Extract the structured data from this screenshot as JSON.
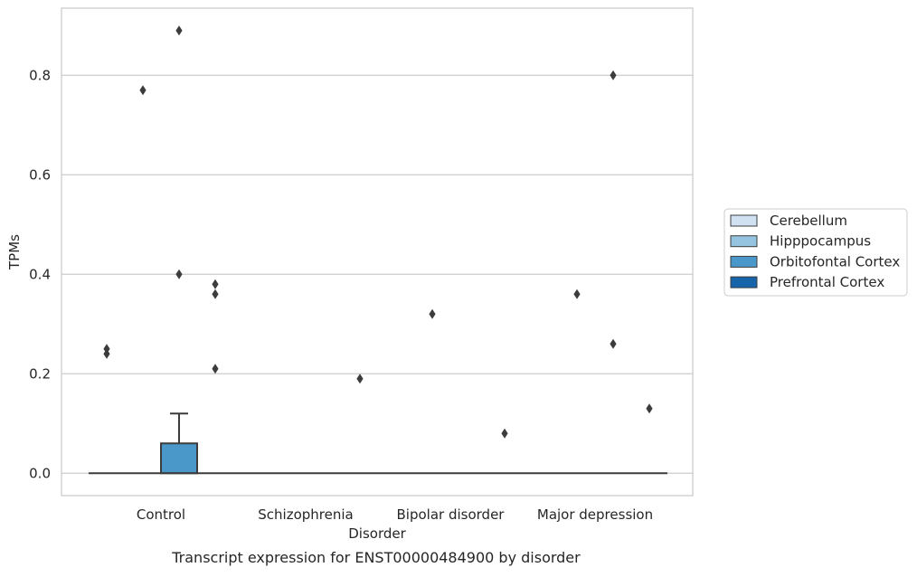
{
  "chart_data": {
    "type": "box",
    "caption": "Transcript expression for ENST00000484900 by disorder",
    "xlabel": "Disorder",
    "ylabel": "TPMs",
    "ylim": [
      -0.045,
      0.935
    ],
    "yticks": [
      0.0,
      0.2,
      0.4,
      0.6,
      0.8
    ],
    "ytick_labels": [
      "0.0",
      "0.2",
      "0.4",
      "0.6",
      "0.8"
    ],
    "grid": "horizontal",
    "legend_position": "right",
    "categories": [
      "Control",
      "Schizophrenia",
      "Bipolar disorder",
      "Major depression"
    ],
    "series": [
      {
        "name": "Cerebellum",
        "color": "#d0e1f2",
        "boxes": [
          {
            "q1": 0,
            "median": 0,
            "q3": 0,
            "whisker_low": 0,
            "whisker_high": 0,
            "outliers": [
              0.25,
              0.24
            ]
          },
          {
            "q1": 0,
            "median": 0,
            "q3": 0,
            "whisker_low": 0,
            "whisker_high": 0,
            "outliers": []
          },
          {
            "q1": 0,
            "median": 0,
            "q3": 0,
            "whisker_low": 0,
            "whisker_high": 0,
            "outliers": []
          },
          {
            "q1": 0,
            "median": 0,
            "q3": 0,
            "whisker_low": 0,
            "whisker_high": 0,
            "outliers": []
          }
        ]
      },
      {
        "name": "Hipppocampus",
        "color": "#94c4df",
        "boxes": [
          {
            "q1": 0,
            "median": 0,
            "q3": 0,
            "whisker_low": 0,
            "whisker_high": 0,
            "outliers": [
              0.77
            ]
          },
          {
            "q1": 0,
            "median": 0,
            "q3": 0,
            "whisker_low": 0,
            "whisker_high": 0,
            "outliers": []
          },
          {
            "q1": 0,
            "median": 0,
            "q3": 0,
            "whisker_low": 0,
            "whisker_high": 0,
            "outliers": [
              0.32
            ]
          },
          {
            "q1": 0,
            "median": 0,
            "q3": 0,
            "whisker_low": 0,
            "whisker_high": 0,
            "outliers": [
              0.36
            ]
          }
        ]
      },
      {
        "name": "Orbitofontal Cortex",
        "color": "#4a98c9",
        "boxes": [
          {
            "q1": 0,
            "median": 0,
            "q3": 0.06,
            "whisker_low": 0,
            "whisker_high": 0.12,
            "outliers": [
              0.89,
              0.4
            ]
          },
          {
            "q1": 0,
            "median": 0,
            "q3": 0,
            "whisker_low": 0,
            "whisker_high": 0,
            "outliers": []
          },
          {
            "q1": 0,
            "median": 0,
            "q3": 0,
            "whisker_low": 0,
            "whisker_high": 0,
            "outliers": []
          },
          {
            "q1": 0,
            "median": 0,
            "q3": 0,
            "whisker_low": 0,
            "whisker_high": 0,
            "outliers": [
              0.8,
              0.26
            ]
          }
        ]
      },
      {
        "name": "Prefrontal Cortex",
        "color": "#1764ab",
        "boxes": [
          {
            "q1": 0,
            "median": 0,
            "q3": 0,
            "whisker_low": 0,
            "whisker_high": 0,
            "outliers": [
              0.38,
              0.36,
              0.21
            ]
          },
          {
            "q1": 0,
            "median": 0,
            "q3": 0,
            "whisker_low": 0,
            "whisker_high": 0,
            "outliers": [
              0.19
            ]
          },
          {
            "q1": 0,
            "median": 0,
            "q3": 0,
            "whisker_low": 0,
            "whisker_high": 0,
            "outliers": [
              0.08
            ]
          },
          {
            "q1": 0,
            "median": 0,
            "q3": 0,
            "whisker_low": 0,
            "whisker_high": 0,
            "outliers": [
              0.13
            ]
          }
        ]
      }
    ]
  }
}
